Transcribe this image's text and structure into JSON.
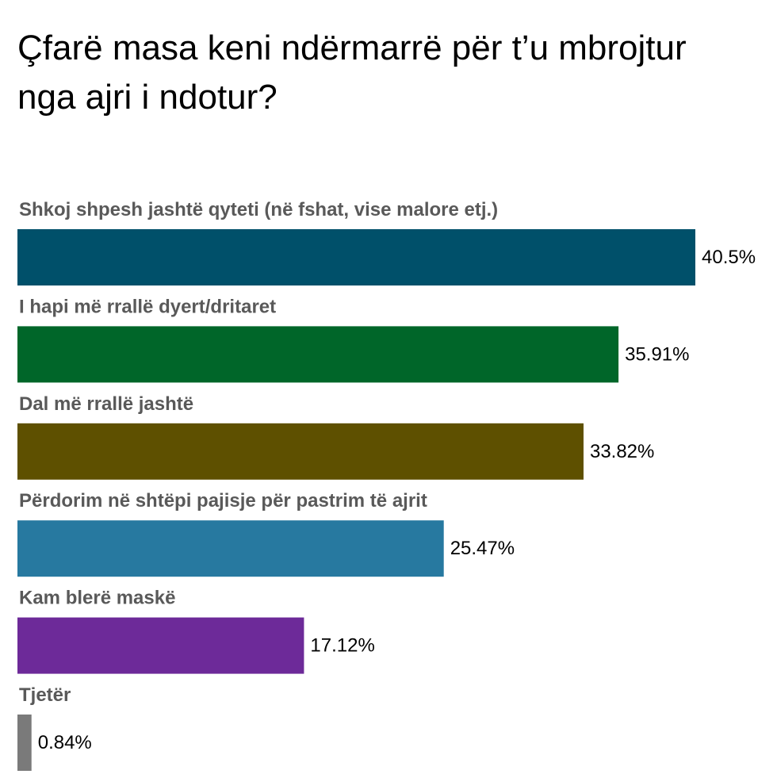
{
  "chart_data": {
    "type": "bar",
    "orientation": "horizontal",
    "title": "Çfarë masa keni ndërmarrë për t’u mbrojtur nga ajri i ndotur?",
    "categories": [
      "Shkoj shpesh jashtë qyteti (në fshat, vise malore etj.)",
      "I hapi më rrallë dyert/dritaret",
      "Dal më rrallë jashtë",
      "Përdorim në shtëpi pajisje për pastrim të ajrit",
      "Kam blerë maskë",
      "Tjetër"
    ],
    "values": [
      40.5,
      35.91,
      33.82,
      25.47,
      17.12,
      0.84
    ],
    "value_labels": [
      "40.5%",
      "35.91%",
      "33.82%",
      "25.47%",
      "17.12%",
      "0.84%"
    ],
    "colors": [
      "#00506a",
      "#006629",
      "#5e5000",
      "#2779a0",
      "#6d2a99",
      "#7a7a7a"
    ],
    "unit": "%",
    "grid": false,
    "legend": "none"
  }
}
